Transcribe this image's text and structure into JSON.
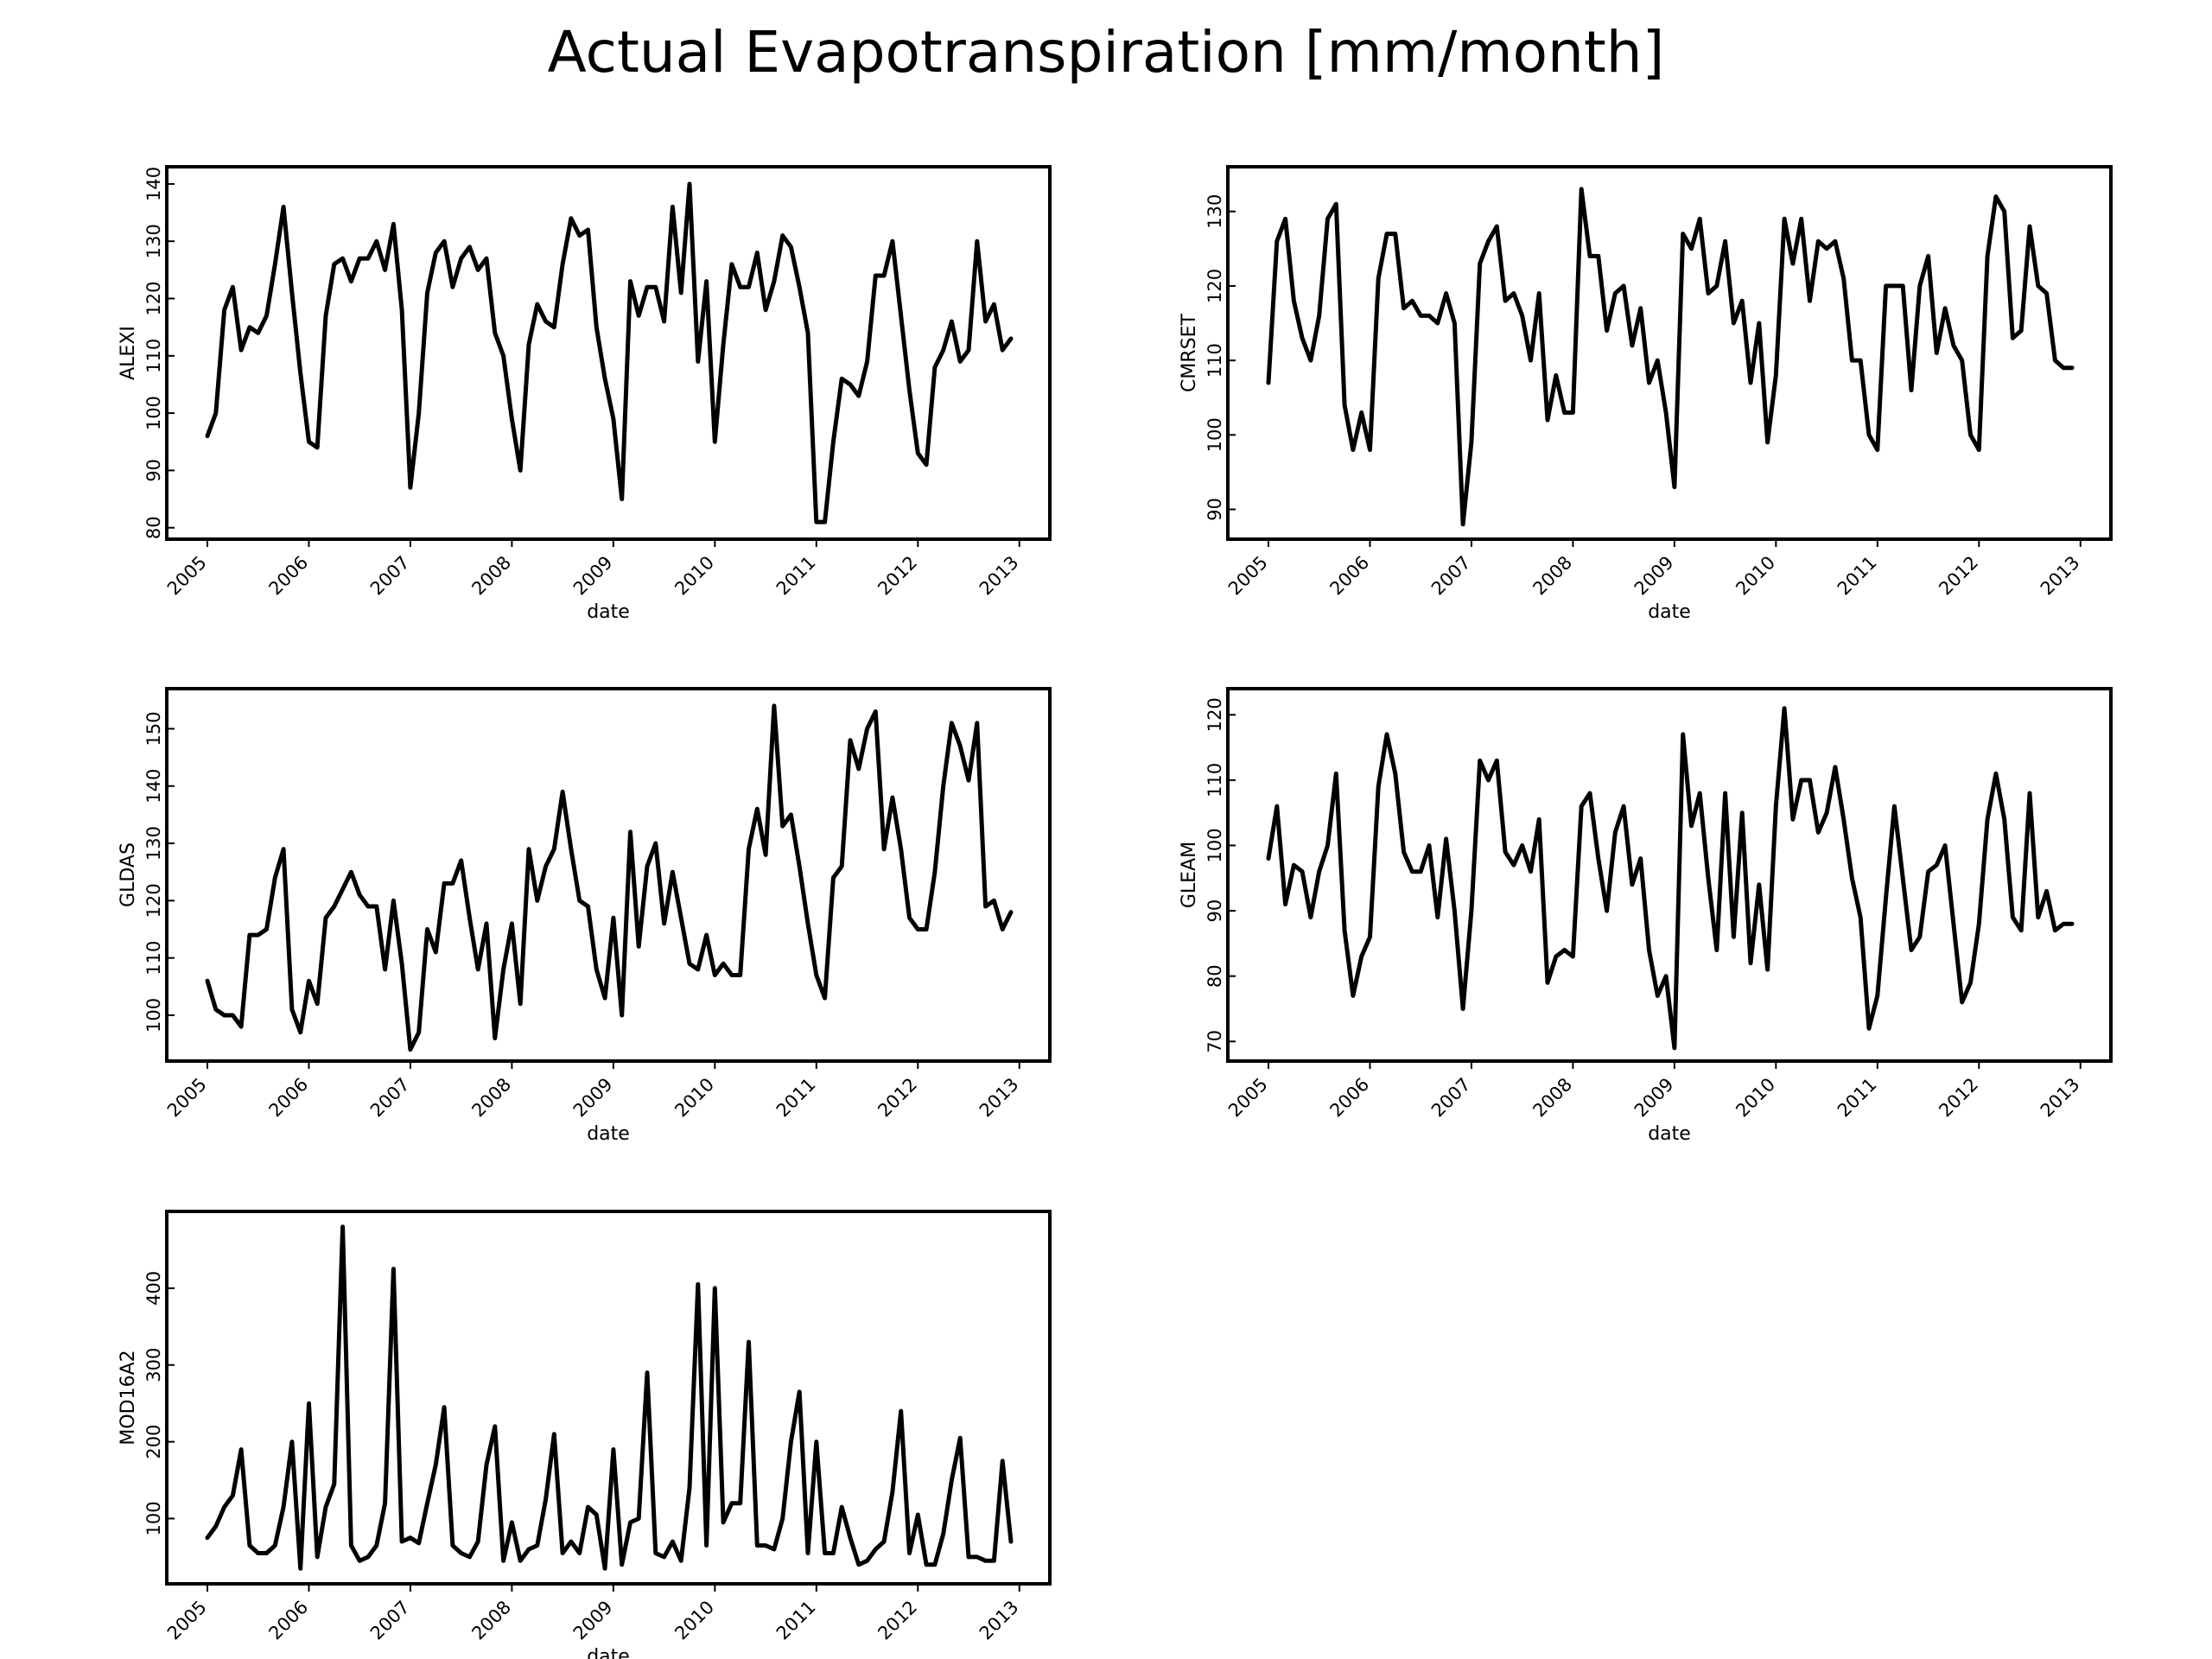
{
  "title": "Actual Evapotranspiration [mm/month]",
  "colors": {
    "line": "#000000",
    "frame": "#000000",
    "background": "#ffffff"
  },
  "chart_data": [
    {
      "type": "line",
      "ylabel": "ALEXI",
      "xlabel": "date",
      "xlim": [
        2004.6,
        2013.3
      ],
      "ylim": [
        78,
        143
      ],
      "yticks": [
        80,
        90,
        100,
        110,
        120,
        130,
        140
      ],
      "xticks": [
        "2005",
        "2006",
        "2007",
        "2008",
        "2009",
        "2010",
        "2011",
        "2012",
        "2013"
      ],
      "series": [
        {
          "values": [
            96,
            100,
            118,
            122,
            111,
            115,
            114,
            117,
            126,
            136,
            121,
            107,
            95,
            94,
            117,
            126,
            127,
            123,
            127,
            127,
            130,
            125,
            133,
            118,
            87,
            100,
            121,
            128,
            130,
            122,
            127,
            129,
            125,
            127,
            114,
            110,
            99,
            90,
            112,
            119,
            116,
            115,
            126,
            134,
            131,
            132,
            115,
            106,
            99,
            85,
            123,
            117,
            122,
            122,
            116,
            136,
            121,
            140,
            109,
            123,
            95,
            112,
            126,
            122,
            122,
            128,
            118,
            123,
            131,
            129,
            122,
            114,
            81,
            81,
            95,
            106,
            105,
            103,
            109,
            124,
            124,
            130,
            117,
            104,
            93,
            91,
            108,
            111,
            116,
            109,
            111,
            130,
            116,
            119,
            111,
            113
          ]
        }
      ]
    },
    {
      "type": "line",
      "ylabel": "CMRSET",
      "xlabel": "date",
      "xlim": [
        2004.6,
        2013.3
      ],
      "ylim": [
        86,
        136
      ],
      "yticks": [
        90,
        100,
        110,
        120,
        130
      ],
      "xticks": [
        "2005",
        "2006",
        "2007",
        "2008",
        "2009",
        "2010",
        "2011",
        "2012",
        "2013"
      ],
      "series": [
        {
          "values": [
            107,
            126,
            129,
            118,
            113,
            110,
            116,
            129,
            131,
            104,
            98,
            103,
            98,
            121,
            127,
            127,
            117,
            118,
            116,
            116,
            115,
            119,
            115,
            88,
            99,
            123,
            126,
            128,
            118,
            119,
            116,
            110,
            119,
            102,
            108,
            103,
            103,
            133,
            124,
            124,
            114,
            119,
            120,
            112,
            117,
            107,
            110,
            103,
            93,
            127,
            125,
            129,
            119,
            120,
            126,
            115,
            118,
            107,
            115,
            99,
            108,
            129,
            123,
            129,
            118,
            126,
            125,
            126,
            121,
            110,
            110,
            100,
            98,
            120,
            120,
            120,
            106,
            120,
            124,
            111,
            117,
            112,
            110,
            100,
            98,
            124,
            132,
            130,
            113,
            114,
            128,
            120,
            119,
            110,
            109,
            109
          ]
        }
      ]
    },
    {
      "type": "line",
      "ylabel": "GLDAS",
      "xlabel": "date",
      "xlim": [
        2004.6,
        2013.3
      ],
      "ylim": [
        92,
        157
      ],
      "yticks": [
        100,
        110,
        120,
        130,
        140,
        150
      ],
      "xticks": [
        "2005",
        "2006",
        "2007",
        "2008",
        "2009",
        "2010",
        "2011",
        "2012",
        "2013"
      ],
      "series": [
        {
          "values": [
            106,
            101,
            100,
            100,
            98,
            114,
            114,
            115,
            124,
            129,
            101,
            97,
            106,
            102,
            117,
            119,
            122,
            125,
            121,
            119,
            119,
            108,
            120,
            109,
            94,
            97,
            115,
            111,
            123,
            123,
            127,
            117,
            108,
            116,
            96,
            108,
            116,
            102,
            129,
            120,
            126,
            129,
            139,
            129,
            120,
            119,
            108,
            103,
            117,
            100,
            132,
            112,
            126,
            130,
            116,
            125,
            117,
            109,
            108,
            114,
            107,
            109,
            107,
            107,
            129,
            136,
            128,
            154,
            133,
            135,
            126,
            116,
            107,
            103,
            124,
            126,
            148,
            143,
            150,
            153,
            129,
            138,
            129,
            117,
            115,
            115,
            125,
            140,
            151,
            147,
            141,
            151,
            119,
            120,
            115,
            118
          ]
        }
      ]
    },
    {
      "type": "line",
      "ylabel": "GLEAM",
      "xlabel": "date",
      "xlim": [
        2004.6,
        2013.3
      ],
      "ylim": [
        67,
        124
      ],
      "yticks": [
        70,
        80,
        90,
        100,
        110,
        120
      ],
      "xticks": [
        "2005",
        "2006",
        "2007",
        "2008",
        "2009",
        "2010",
        "2011",
        "2012",
        "2013"
      ],
      "series": [
        {
          "values": [
            98,
            106,
            91,
            97,
            96,
            89,
            96,
            100,
            111,
            87,
            77,
            83,
            86,
            109,
            117,
            111,
            99,
            96,
            96,
            100,
            89,
            101,
            90,
            75,
            90,
            113,
            110,
            113,
            99,
            97,
            100,
            96,
            104,
            79,
            83,
            84,
            83,
            106,
            108,
            98,
            90,
            102,
            106,
            94,
            98,
            84,
            77,
            80,
            69,
            117,
            103,
            108,
            95,
            84,
            108,
            86,
            105,
            82,
            94,
            81,
            106,
            121,
            104,
            110,
            110,
            102,
            105,
            112,
            104,
            95,
            89,
            72,
            77,
            92,
            106,
            95,
            84,
            86,
            96,
            97,
            100,
            88,
            76,
            79,
            88,
            104,
            111,
            104,
            89,
            87,
            108,
            89,
            93,
            87,
            88,
            88
          ]
        }
      ]
    },
    {
      "type": "line",
      "ylabel": "MOD16A2",
      "xlabel": "date",
      "xlim": [
        2004.6,
        2013.3
      ],
      "ylim": [
        15,
        500
      ],
      "yticks": [
        100,
        200,
        300,
        400
      ],
      "xticks": [
        "2005",
        "2006",
        "2007",
        "2008",
        "2009",
        "2010",
        "2011",
        "2012",
        "2013"
      ],
      "series": [
        {
          "values": [
            75,
            90,
            115,
            130,
            190,
            65,
            55,
            55,
            65,
            115,
            200,
            35,
            250,
            50,
            115,
            145,
            480,
            65,
            45,
            50,
            65,
            120,
            425,
            70,
            75,
            68,
            120,
            170,
            245,
            65,
            55,
            50,
            70,
            170,
            220,
            45,
            95,
            45,
            60,
            65,
            125,
            210,
            55,
            70,
            55,
            115,
            105,
            35,
            190,
            40,
            95,
            100,
            290,
            55,
            50,
            70,
            45,
            140,
            405,
            65,
            400,
            95,
            120,
            120,
            330,
            65,
            65,
            60,
            100,
            200,
            265,
            55,
            200,
            55,
            55,
            115,
            75,
            40,
            45,
            60,
            70,
            135,
            240,
            55,
            105,
            40,
            40,
            80,
            150,
            205,
            50,
            50,
            45,
            45,
            175,
            70
          ]
        }
      ]
    }
  ]
}
